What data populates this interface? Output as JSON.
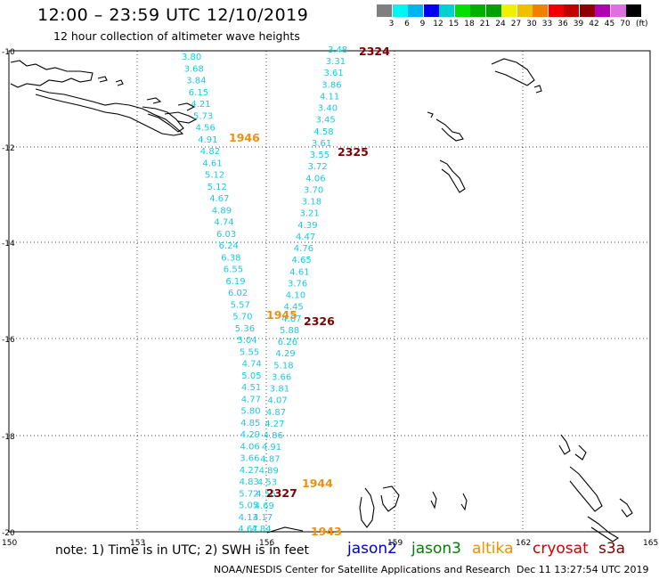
{
  "title": "12:00 – 23:59 UTC 12/10/2019",
  "subtitle": "12 hour collection of altimeter wave heights",
  "scale": {
    "labels": [
      "3",
      "6",
      "9",
      "12",
      "15",
      "18",
      "21",
      "24",
      "27",
      "30",
      "33",
      "36",
      "39",
      "42",
      "45",
      "70"
    ],
    "unit": "(ft)",
    "colors": [
      "#7f7f7f",
      "#00f5f5",
      "#00b4f0",
      "#0000f0",
      "#00d0d0",
      "#00e000",
      "#00b000",
      "#00a000",
      "#f0f000",
      "#f0c000",
      "#f08000",
      "#f00000",
      "#c00000",
      "#900000",
      "#b000b0",
      "#e070e0",
      "#000000"
    ]
  },
  "axes": {
    "lat_labels": [
      "-10",
      "-12",
      "-14",
      "-16",
      "-18",
      "-20"
    ],
    "lon_labels": [
      "150",
      "153",
      "156",
      "159",
      "162",
      "165"
    ]
  },
  "passes": [
    {
      "id": "2324",
      "color": "#7f0000"
    },
    {
      "id": "2325",
      "color": "#7f0000"
    },
    {
      "id": "2326",
      "color": "#7f0000"
    },
    {
      "id": "2327",
      "color": "#7f0000"
    },
    {
      "id": "1946",
      "color": "#f09010"
    },
    {
      "id": "1945",
      "color": "#f09010"
    },
    {
      "id": "1944",
      "color": "#f09010"
    },
    {
      "id": "1943",
      "color": "#f09010"
    }
  ],
  "track_a": [
    "3.80",
    "3.68",
    "3.84",
    "6.15",
    "4.21",
    "5.73",
    "4.56",
    "4.91",
    "4.82",
    "4.61",
    "5.12",
    "5.12",
    "4.67",
    "4.89",
    "4.74",
    "6.03",
    "6.24",
    "6.38",
    "6.55",
    "6.19",
    "6.02",
    "5.57",
    "5.70",
    "5.36",
    "5.04",
    "5.55",
    "4.74",
    "5.05",
    "4.51",
    "4.77",
    "5.80",
    "4.85",
    "4.29",
    "4.06",
    "3.66",
    "4.27",
    "4.83",
    "5.72",
    "5.05",
    "4.13",
    "4.67"
  ],
  "track_b": [
    "3.48",
    "3.31",
    "3.61",
    "3.86",
    "4.11",
    "3.40",
    "3.45",
    "4.58",
    "3.61",
    "3.55",
    "3.72",
    "4.06",
    "3.70",
    "3.18",
    "3.21",
    "4.39",
    "4.47",
    "4.76",
    "4.65",
    "4.61",
    "3.76",
    "4.10",
    "4.45",
    "4.87",
    "5.88",
    "6.26",
    "4.29",
    "5.18",
    "3.66",
    "3.81",
    "4.07",
    "4.87",
    "4.27",
    "4.86",
    "4.91",
    "4.87",
    "4.89",
    "4.53",
    "4.56",
    "4.69",
    "4.17",
    "4.84"
  ],
  "note": "note: 1) Time is in UTC; 2) SWH is in feet",
  "legend": [
    {
      "name": "jason2",
      "color": "#0000d0"
    },
    {
      "name": "jason3",
      "color": "#008000"
    },
    {
      "name": "altika",
      "color": "#f09000"
    },
    {
      "name": "cryosat",
      "color": "#d00000"
    },
    {
      "name": "s3a",
      "color": "#800000"
    }
  ],
  "credit": "NOAA/NESDIS Center for Satellite Applications and Research",
  "timestamp": "Dec 11 13:27:54 UTC 2019"
}
